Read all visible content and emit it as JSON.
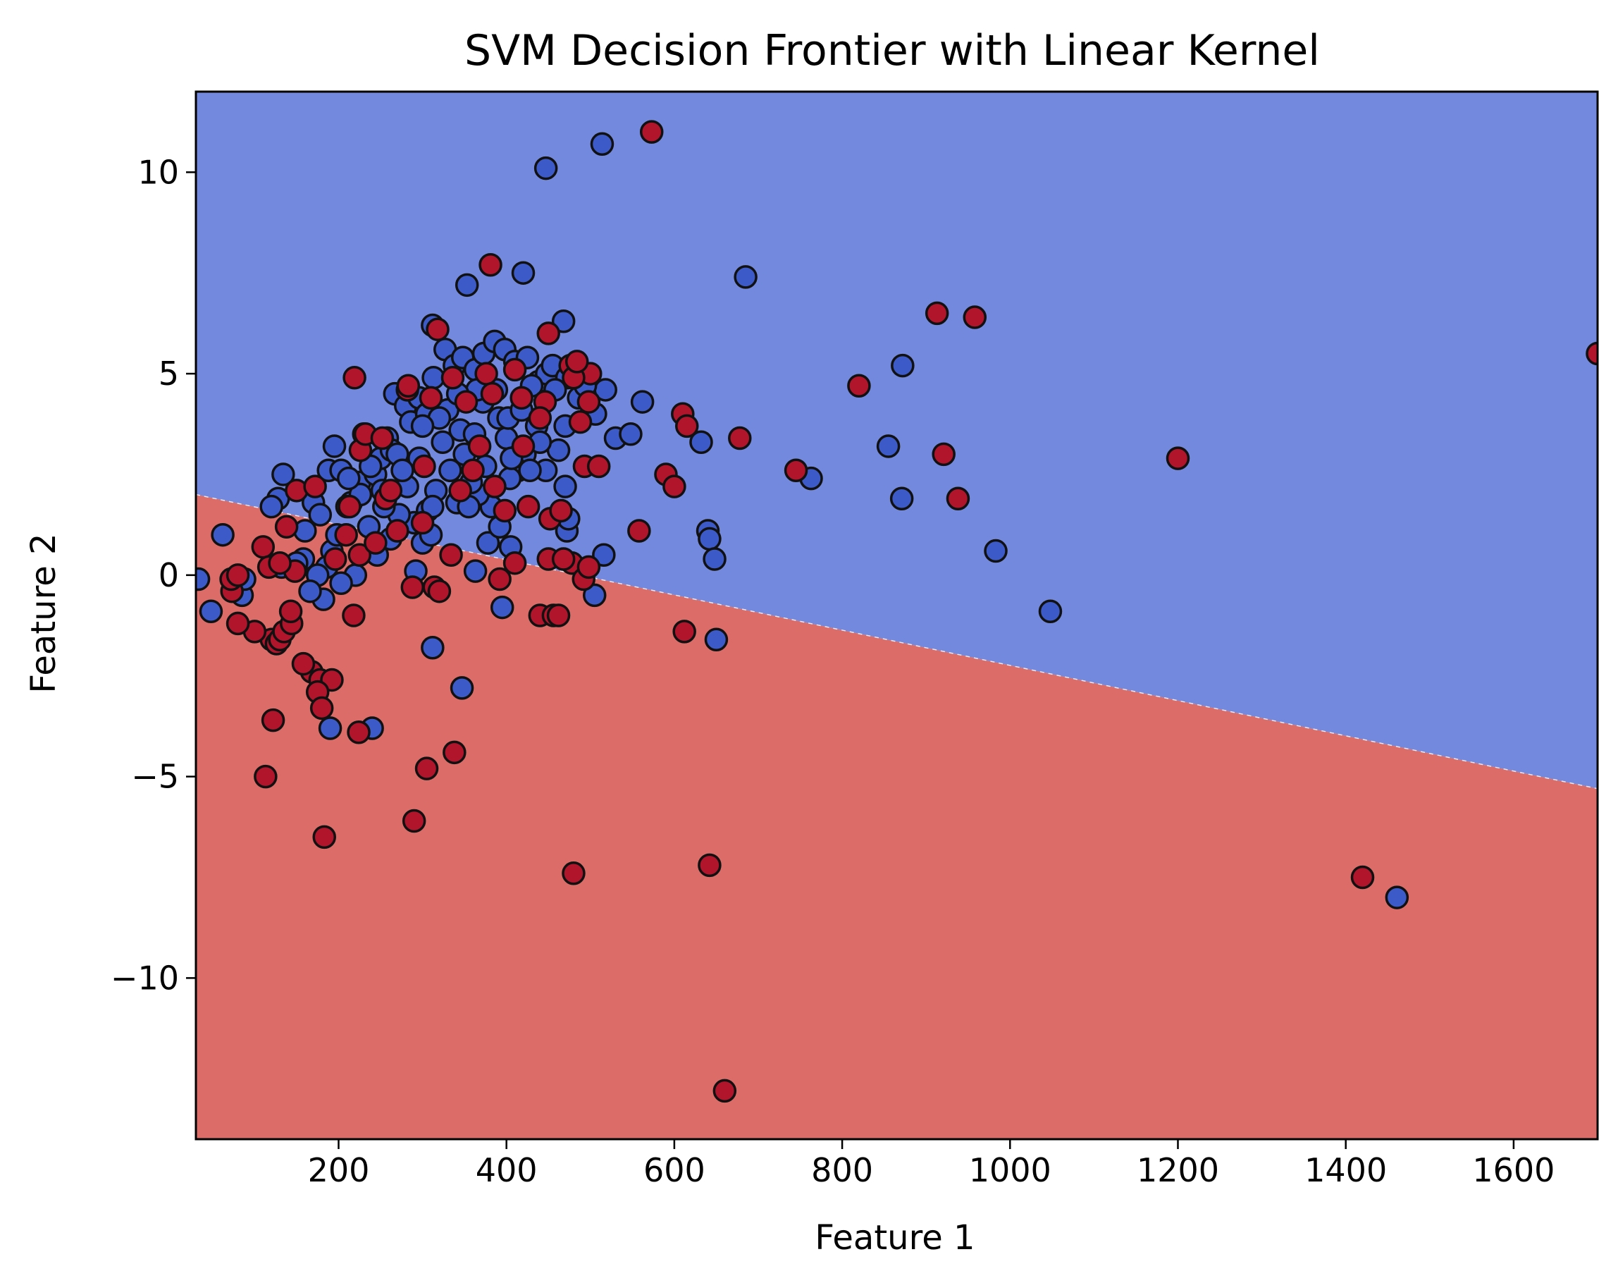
{
  "chart_data": {
    "type": "scatter",
    "title": "SVM Decision Frontier with Linear Kernel",
    "xlabel": "Feature 1",
    "ylabel": "Feature 2",
    "xlim": [
      30,
      1700
    ],
    "ylim": [
      -14,
      12
    ],
    "xticks": [
      200,
      400,
      600,
      800,
      1000,
      1200,
      1400,
      1600
    ],
    "yticks": [
      -10,
      -5,
      0,
      5,
      10
    ],
    "xtick_labels": [
      "200",
      "400",
      "600",
      "800",
      "1000",
      "1200",
      "1400",
      "1600"
    ],
    "ytick_labels": [
      "−10",
      "−5",
      "0",
      "5",
      "10"
    ],
    "grid": false,
    "decision_boundary": {
      "x": [
        30,
        1700
      ],
      "y": [
        2.0,
        -5.3
      ]
    },
    "regions": [
      {
        "class": "blue",
        "side": "above",
        "color": "#7389dd"
      },
      {
        "class": "red",
        "side": "below",
        "color": "#db6c68"
      }
    ],
    "series": [
      {
        "color": "#3c5bc8",
        "points": [
          [
            447,
            10.1
          ],
          [
            514,
            10.7
          ],
          [
            420,
            7.5
          ],
          [
            353,
            7.2
          ],
          [
            685,
            7.4
          ],
          [
            872,
            5.2
          ],
          [
            855,
            3.2
          ],
          [
            763,
            2.4
          ],
          [
            871,
            1.9
          ],
          [
            983,
            0.6
          ],
          [
            1048,
            -0.9
          ],
          [
            1461,
            -8.0
          ],
          [
            347,
            -2.8
          ],
          [
            312,
            -1.8
          ],
          [
            650,
            -1.6
          ],
          [
            395,
            -0.8
          ],
          [
            190,
            -3.8
          ],
          [
            240,
            -3.8
          ],
          [
            33,
            -0.1
          ],
          [
            48,
            -0.9
          ],
          [
            62,
            1.0
          ],
          [
            85,
            -0.5
          ],
          [
            88,
            -0.1
          ],
          [
            134,
            2.5
          ],
          [
            128,
            1.9
          ],
          [
            120,
            1.7
          ],
          [
            132,
            0.2
          ],
          [
            160,
            1.1
          ],
          [
            170,
            1.8
          ],
          [
            188,
            2.6
          ],
          [
            195,
            3.2
          ],
          [
            203,
            2.6
          ],
          [
            215,
            1.8
          ],
          [
            225,
            2.3
          ],
          [
            230,
            3.5
          ],
          [
            244,
            2.5
          ],
          [
            250,
            2.9
          ],
          [
            258,
            3.4
          ],
          [
            263,
            3.1
          ],
          [
            270,
            3.0
          ],
          [
            267,
            4.5
          ],
          [
            280,
            4.2
          ],
          [
            286,
            3.8
          ],
          [
            296,
            4.4
          ],
          [
            305,
            4.0
          ],
          [
            313,
            4.9
          ],
          [
            312,
            6.2
          ],
          [
            327,
            5.6
          ],
          [
            338,
            5.2
          ],
          [
            348,
            5.4
          ],
          [
            363,
            5.1
          ],
          [
            373,
            5.5
          ],
          [
            386,
            5.8
          ],
          [
            398,
            5.6
          ],
          [
            410,
            5.3
          ],
          [
            425,
            5.4
          ],
          [
            438,
            4.8
          ],
          [
            448,
            5.0
          ],
          [
            455,
            5.2
          ],
          [
            468,
            6.3
          ],
          [
            472,
            4.9
          ],
          [
            486,
            4.4
          ],
          [
            506,
            4.0
          ],
          [
            518,
            4.6
          ],
          [
            530,
            3.4
          ],
          [
            548,
            3.5
          ],
          [
            562,
            4.3
          ],
          [
            632,
            3.3
          ],
          [
            640,
            1.1
          ],
          [
            642,
            0.9
          ],
          [
            648,
            0.4
          ],
          [
            516,
            0.5
          ],
          [
            505,
            -0.5
          ],
          [
            472,
            1.1
          ],
          [
            474,
            1.4
          ],
          [
            470,
            2.2
          ],
          [
            462,
            3.1
          ],
          [
            447,
            2.6
          ],
          [
            436,
            3.7
          ],
          [
            422,
            3.0
          ],
          [
            414,
            2.6
          ],
          [
            404,
            2.4
          ],
          [
            400,
            3.4
          ],
          [
            391,
            3.9
          ],
          [
            382,
            1.7
          ],
          [
            375,
            2.7
          ],
          [
            366,
            2.0
          ],
          [
            358,
            2.3
          ],
          [
            350,
            3.0
          ],
          [
            341,
            1.8
          ],
          [
            333,
            2.6
          ],
          [
            324,
            3.3
          ],
          [
            316,
            2.1
          ],
          [
            306,
            1.6
          ],
          [
            296,
            2.9
          ],
          [
            290,
            1.3
          ],
          [
            282,
            2.2
          ],
          [
            272,
            1.5
          ],
          [
            262,
            0.9
          ],
          [
            254,
            1.7
          ],
          [
            246,
            0.5
          ],
          [
            236,
            1.2
          ],
          [
            226,
            2.0
          ],
          [
            220,
            0.0
          ],
          [
            210,
            1.7
          ],
          [
            203,
            -0.2
          ],
          [
            192,
            0.6
          ],
          [
            186,
            0.2
          ],
          [
            182,
            -0.6
          ],
          [
            175,
            0.0
          ],
          [
            166,
            -0.4
          ],
          [
            158,
            0.4
          ],
          [
            150,
            0.3
          ],
          [
            292,
            0.1
          ],
          [
            363,
            0.1
          ],
          [
            405,
            0.7
          ],
          [
            378,
            0.8
          ],
          [
            330,
            4.1
          ],
          [
            345,
            3.6
          ],
          [
            362,
            3.5
          ],
          [
            372,
            4.3
          ],
          [
            388,
            4.6
          ],
          [
            402,
            3.9
          ],
          [
            418,
            4.1
          ],
          [
            430,
            4.7
          ],
          [
            365,
            4.6
          ],
          [
            342,
            4.5
          ],
          [
            320,
            3.9
          ],
          [
            300,
            3.7
          ],
          [
            276,
            2.6
          ],
          [
            252,
            2.1
          ],
          [
            238,
            2.7
          ],
          [
            212,
            2.4
          ],
          [
            198,
            1.0
          ],
          [
            178,
            1.5
          ],
          [
            458,
            4.6
          ],
          [
            470,
            3.7
          ],
          [
            494,
            4.7
          ],
          [
            355,
            1.7
          ],
          [
            392,
            1.2
          ],
          [
            406,
            2.9
          ],
          [
            428,
            2.6
          ],
          [
            440,
            3.3
          ],
          [
            300,
            0.8
          ],
          [
            310,
            1.0
          ],
          [
            312,
            1.7
          ]
        ]
      },
      {
        "color": "#b0152b",
        "points": [
          [
            573,
            11.0
          ],
          [
            381,
            7.7
          ],
          [
            913,
            6.5
          ],
          [
            958,
            6.4
          ],
          [
            1700,
            5.5
          ],
          [
            820,
            4.7
          ],
          [
            921,
            3.0
          ],
          [
            1200,
            2.9
          ],
          [
            938,
            1.9
          ],
          [
            678,
            3.4
          ],
          [
            745,
            2.6
          ],
          [
            610,
            4.0
          ],
          [
            615,
            3.7
          ],
          [
            558,
            1.1
          ],
          [
            590,
            2.5
          ],
          [
            600,
            2.2
          ],
          [
            219,
            4.9
          ],
          [
            450,
            6.0
          ],
          [
            476,
            5.2
          ],
          [
            500,
            5.0
          ],
          [
            493,
            2.7
          ],
          [
            510,
            2.7
          ],
          [
            488,
            3.8
          ],
          [
            498,
            4.3
          ],
          [
            612,
            -1.4
          ],
          [
            642,
            -7.2
          ],
          [
            660,
            -12.8
          ],
          [
            480,
            -7.4
          ],
          [
            1420,
            -7.5
          ],
          [
            183,
            -6.5
          ],
          [
            290,
            -6.1
          ],
          [
            305,
            -4.8
          ],
          [
            338,
            -4.4
          ],
          [
            113,
            -5.0
          ],
          [
            224,
            -3.9
          ],
          [
            122,
            -3.6
          ],
          [
            168,
            -2.4
          ],
          [
            178,
            -2.6
          ],
          [
            192,
            -2.6
          ],
          [
            175,
            -2.9
          ],
          [
            180,
            -3.3
          ],
          [
            158,
            -2.2
          ],
          [
            120,
            -1.6
          ],
          [
            126,
            -1.7
          ],
          [
            130,
            -1.6
          ],
          [
            135,
            -1.4
          ],
          [
            144,
            -1.2
          ],
          [
            143,
            -0.9
          ],
          [
            100,
            -1.4
          ],
          [
            80,
            -1.2
          ],
          [
            73,
            -0.4
          ],
          [
            72,
            -0.1
          ],
          [
            80,
            -0.0
          ],
          [
            110,
            0.7
          ],
          [
            117,
            0.2
          ],
          [
            138,
            1.2
          ],
          [
            150,
            2.1
          ],
          [
            196,
            0.4
          ],
          [
            209,
            1.0
          ],
          [
            213,
            1.7
          ],
          [
            218,
            -1.0
          ],
          [
            225,
            0.5
          ],
          [
            244,
            0.8
          ],
          [
            256,
            1.9
          ],
          [
            262,
            2.1
          ],
          [
            288,
            -0.3
          ],
          [
            314,
            -0.3
          ],
          [
            320,
            -0.4
          ],
          [
            334,
            0.5
          ],
          [
            392,
            -0.1
          ],
          [
            410,
            0.3
          ],
          [
            450,
            0.4
          ],
          [
            440,
            -1.0
          ],
          [
            456,
            -1.0
          ],
          [
            462,
            -1.0
          ],
          [
            478,
            0.3
          ],
          [
            492,
            -0.1
          ],
          [
            498,
            0.2
          ],
          [
            302,
            2.7
          ],
          [
            282,
            4.6
          ],
          [
            318,
            6.1
          ],
          [
            352,
            4.3
          ],
          [
            368,
            3.2
          ],
          [
            376,
            5.0
          ],
          [
            383,
            4.5
          ],
          [
            410,
            5.1
          ],
          [
            420,
            3.2
          ],
          [
            426,
            1.7
          ],
          [
            446,
            4.3
          ],
          [
            452,
            1.4
          ],
          [
            468,
            0.4
          ],
          [
            480,
            4.9
          ],
          [
            226,
            3.1
          ],
          [
            232,
            3.5
          ],
          [
            252,
            3.4
          ],
          [
            283,
            4.7
          ],
          [
            310,
            4.4
          ],
          [
            336,
            4.9
          ],
          [
            345,
            2.1
          ],
          [
            360,
            2.6
          ],
          [
            386,
            2.2
          ],
          [
            398,
            1.6
          ],
          [
            418,
            4.4
          ],
          [
            440,
            3.9
          ],
          [
            270,
            1.1
          ],
          [
            300,
            1.3
          ],
          [
            172,
            2.2
          ],
          [
            148,
            0.1
          ],
          [
            130,
            0.3
          ],
          [
            484,
            5.3
          ],
          [
            465,
            1.6
          ]
        ]
      }
    ]
  }
}
